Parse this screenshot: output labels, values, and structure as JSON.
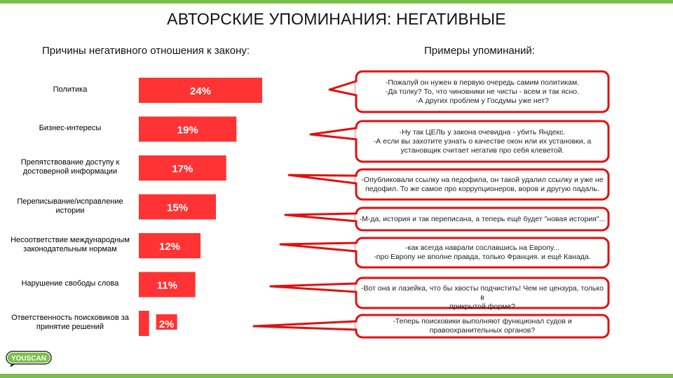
{
  "title": "АВТОРСКИЕ УПОМИНАНИЯ: НЕГАТИВНЫЕ",
  "left_heading": "Причины негативного отношения к закону:",
  "right_heading": "Примеры упоминаний:",
  "colors": {
    "bar": "#ff3333",
    "bubble_border": "#e01010",
    "accent": "#7bbf4a"
  },
  "logo": {
    "text": "YOUSCAN"
  },
  "chart_data": {
    "type": "bar",
    "orientation": "horizontal",
    "categories": [
      "Политика",
      "Бизнес-интересы",
      "Препятствование доступу к достоверной информации",
      "Переписывание/исправление истории",
      "Несоответствие международным законодательным нормам",
      "Нарушение свободы слова",
      "Ответственность поисковиков за принятие решений"
    ],
    "values": [
      24,
      19,
      17,
      15,
      12,
      11,
      2
    ],
    "value_labels": [
      "24%",
      "19%",
      "17%",
      "15%",
      "12%",
      "11%",
      "2%"
    ],
    "xlim": [
      0,
      24
    ]
  },
  "quotes": [
    [
      "-Пожалуй он нужен в первую очередь самим политикам.",
      "-Да толку? То, что чиновники не чисты - всем и так ясно.",
      "-А других проблем у Госдумы уже нет?"
    ],
    [
      "-Ну так ЦЕЛЬ у закона очевидна - убить Яндекс.",
      "-А если вы захотите узнать о качестве окон или их установки, а",
      "установщик считает негатив про себя клеветой."
    ],
    [
      "-Опубликовали ссылку на педофила, он такой удалил ссылку и уже не",
      "педофил. То же самое про коррупционеров, воров и другую падаль."
    ],
    [
      "-М-да, история и так переписана, а теперь ещё будет \"новая история\"..."
    ],
    [
      "-как всегда наврали сославшись на Европу...",
      "-про Европу не вполне правда, только Франция. и ещё Канада."
    ],
    [
      "-Вот она и лазейка, что бы хвосты подчистить! Чем не цензура, только в",
      "прикрытой форме?"
    ],
    [
      "-Теперь поисковики выполняют функционал судов и",
      "правоохранительных органов?"
    ]
  ]
}
